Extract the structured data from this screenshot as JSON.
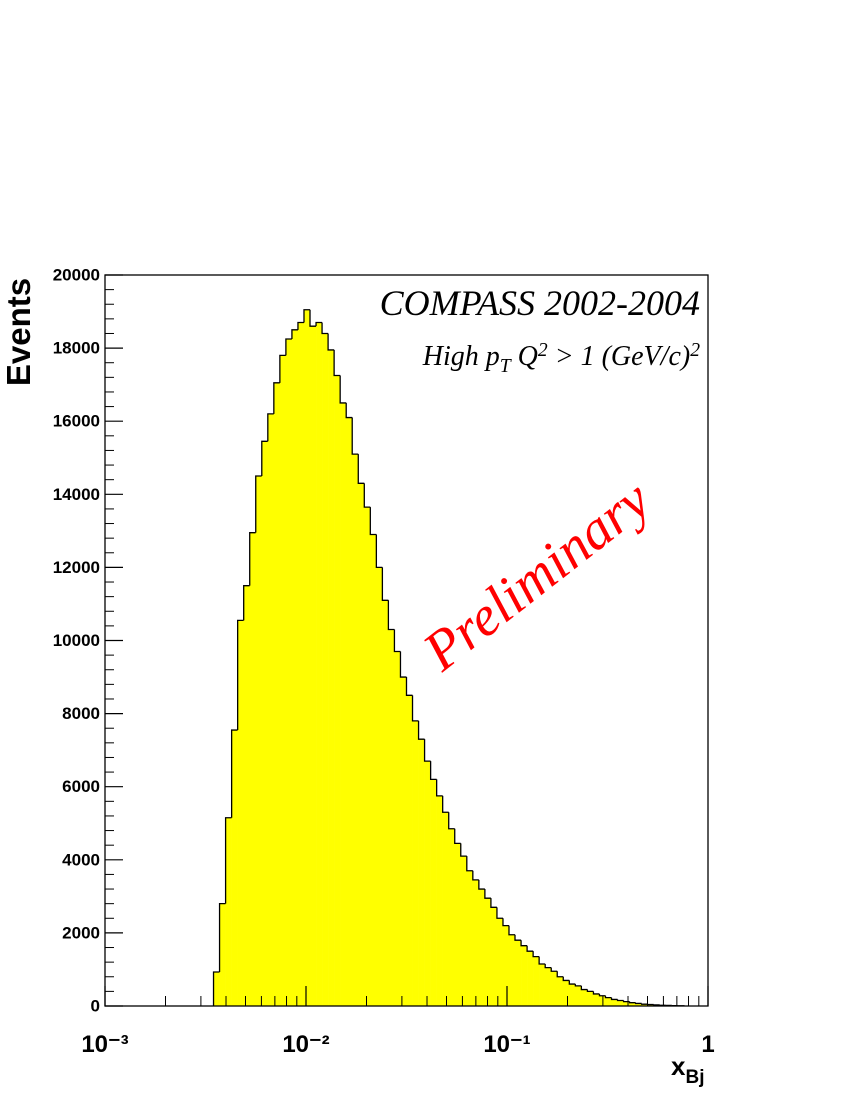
{
  "chart_data": {
    "type": "histogram",
    "ylabel": "Events",
    "xlabel": {
      "text": "x",
      "sub": "Bj"
    },
    "annotations": [
      {
        "parts": [
          {
            "text": "COMPASS 2002-2004"
          }
        ]
      },
      {
        "parts": [
          {
            "text": "High p"
          },
          {
            "text": "T",
            "shift": "sub"
          },
          {
            "text": "  Q"
          },
          {
            "text": "2",
            "shift": "super"
          },
          {
            "text": " > 1 (GeV/c)"
          },
          {
            "text": "2",
            "shift": "super"
          }
        ]
      }
    ],
    "watermark": {
      "text": "Preliminary",
      "color": "#ff0000"
    },
    "color": "#ffff00",
    "xscale": "log",
    "xlim": [
      0.001,
      1
    ],
    "xticks": [
      {
        "value": 0.001,
        "label": "10⁻³"
      },
      {
        "value": 0.01,
        "label": "10⁻²"
      },
      {
        "value": 0.1,
        "label": "10⁻¹"
      },
      1
    ],
    "ylim": [
      0,
      20000
    ],
    "yticks": [
      0,
      2000,
      4000,
      6000,
      8000,
      10000,
      12000,
      14000,
      16000,
      18000,
      20000
    ],
    "bins": [
      0.003467,
      0.003715,
      0.003981,
      0.004266,
      0.004571,
      0.004898,
      0.005248,
      0.005623,
      0.006026,
      0.006457,
      0.006918,
      0.007413,
      0.007943,
      0.008511,
      0.00912,
      0.009772,
      0.01047,
      0.01122,
      0.01202,
      0.01288,
      0.0138,
      0.01479,
      0.01585,
      0.01698,
      0.0182,
      0.0195,
      0.02089,
      0.02239,
      0.02399,
      0.0257,
      0.02754,
      0.02951,
      0.03162,
      0.03388,
      0.03631,
      0.0389,
      0.04169,
      0.04467,
      0.04786,
      0.05129,
      0.05495,
      0.05888,
      0.0631,
      0.06761,
      0.07244,
      0.07762,
      0.08318,
      0.08913,
      0.0955,
      0.1023,
      0.1096,
      0.1175,
      0.1259,
      0.1349,
      0.1445,
      0.1549,
      0.166,
      0.1778,
      0.1905,
      0.2042,
      0.2188,
      0.2344,
      0.2512,
      0.2692,
      0.2884,
      0.309,
      0.3311,
      0.3548,
      0.3802,
      0.4074,
      0.4365,
      0.4677,
      0.5012,
      0.537,
      0.5754,
      0.6166,
      0.6607,
      0.708,
      0.7586
    ],
    "values": [
      930,
      2800,
      5150,
      7550,
      10550,
      11500,
      12950,
      14500,
      15450,
      16200,
      17050,
      17800,
      18250,
      18500,
      18700,
      19050,
      18600,
      18700,
      18400,
      17950,
      17250,
      16500,
      16100,
      15100,
      14300,
      13650,
      12900,
      12000,
      11100,
      10300,
      9700,
      9000,
      8500,
      7800,
      7300,
      6700,
      6200,
      5750,
      5300,
      4850,
      4450,
      4100,
      3700,
      3450,
      3200,
      2950,
      2700,
      2400,
      2200,
      1950,
      1800,
      1650,
      1500,
      1350,
      1150,
      1050,
      950,
      800,
      700,
      600,
      550,
      450,
      400,
      330,
      280,
      230,
      180,
      150,
      120,
      90,
      70,
      50,
      40,
      30,
      20,
      15,
      10,
      5
    ]
  }
}
